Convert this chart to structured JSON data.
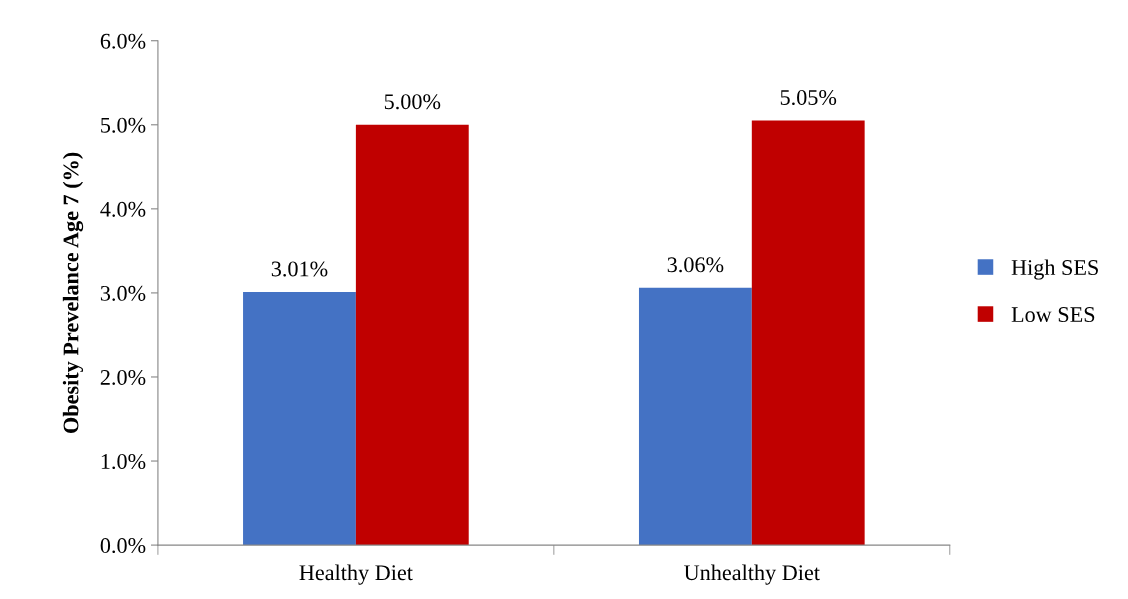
{
  "chart_data": {
    "type": "bar",
    "ylabel": "Obesity Prevelance Age 7 (%)",
    "categories": [
      "Healthy Diet",
      "Unhealthy Diet"
    ],
    "series": [
      {
        "name": "High SES",
        "color": "#4472c4",
        "values": [
          3.01,
          3.06
        ],
        "value_labels": [
          "3.01%",
          "3.06%"
        ]
      },
      {
        "name": "Low SES",
        "color": "#c00000",
        "values": [
          5.0,
          5.05
        ],
        "value_labels": [
          "5.00%",
          "5.05%"
        ]
      }
    ],
    "ylim": [
      0,
      6
    ],
    "yticks": [
      {
        "value": 0,
        "label": "0.0%"
      },
      {
        "value": 1,
        "label": "1.0%"
      },
      {
        "value": 2,
        "label": "2.0%"
      },
      {
        "value": 3,
        "label": "3.0%"
      },
      {
        "value": 4,
        "label": "4.0%"
      },
      {
        "value": 5,
        "label": "5.0%"
      },
      {
        "value": 6,
        "label": "6.0%"
      }
    ],
    "grid": false,
    "legend": "right"
  }
}
